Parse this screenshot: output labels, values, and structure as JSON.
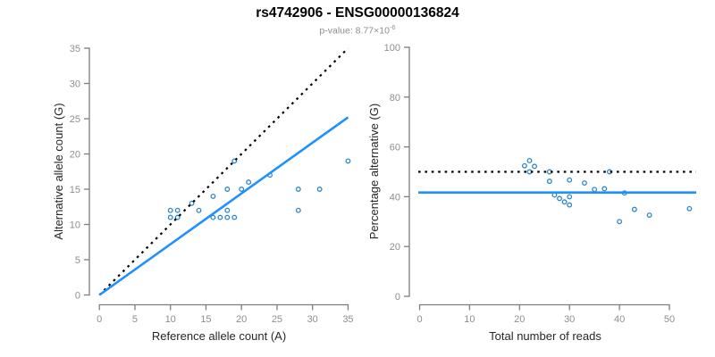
{
  "header": {
    "title": "rs4742906 - ENSG00000136824",
    "subtitle_prefix": "p-value: 8.77×10",
    "subtitle_exponent": "-6"
  },
  "colors": {
    "line_blue": "#1E90FF",
    "point_blue": "#2E86C8",
    "dashed_black": "#000000",
    "axis_gray": "#7d7d7d",
    "tick_label_gray": "#8e8e8e",
    "axis_title_color": "#262626"
  },
  "chart_data": [
    {
      "type": "scatter",
      "panel": "left",
      "xlabel": "Reference allele count (A)",
      "ylabel": "Alternative allele count (G)",
      "xlim": [
        0,
        35
      ],
      "ylim": [
        0,
        35
      ],
      "xticks": [
        0,
        5,
        10,
        15,
        20,
        25,
        30,
        35
      ],
      "yticks": [
        0,
        5,
        10,
        15,
        20,
        25,
        30,
        35
      ],
      "grid": false,
      "points": [
        [
          10,
          12
        ],
        [
          11,
          12
        ],
        [
          10,
          11
        ],
        [
          11,
          11
        ],
        [
          13,
          13
        ],
        [
          14,
          12
        ],
        [
          16,
          14
        ],
        [
          16,
          11
        ],
        [
          17,
          11
        ],
        [
          18,
          11
        ],
        [
          19,
          11
        ],
        [
          18,
          12
        ],
        [
          18,
          15
        ],
        [
          20,
          15
        ],
        [
          19,
          19
        ],
        [
          21,
          16
        ],
        [
          24,
          17
        ],
        [
          28,
          15
        ],
        [
          31,
          15
        ],
        [
          28,
          12
        ],
        [
          35,
          19
        ]
      ],
      "lines": [
        {
          "name": "identity-line",
          "style": "dotted",
          "color": "black",
          "x": [
            0,
            35
          ],
          "y": [
            0,
            35
          ]
        },
        {
          "name": "fit-line",
          "style": "solid",
          "color": "blue",
          "x": [
            0,
            35
          ],
          "y": [
            0,
            25.2
          ]
        }
      ]
    },
    {
      "type": "scatter",
      "panel": "right",
      "xlabel": "Total number of reads",
      "ylabel": "Percentage alternative (G)",
      "xlim": [
        0,
        56
      ],
      "ylim": [
        0,
        100
      ],
      "xticks": [
        0,
        10,
        20,
        30,
        40,
        50
      ],
      "yticks": [
        0,
        20,
        40,
        60,
        80,
        100
      ],
      "grid": false,
      "points": [
        [
          22,
          54.5
        ],
        [
          23,
          52.2
        ],
        [
          21,
          52.4
        ],
        [
          22,
          50.0
        ],
        [
          26,
          50.0
        ],
        [
          26,
          46.2
        ],
        [
          30,
          46.7
        ],
        [
          27,
          40.7
        ],
        [
          28,
          39.3
        ],
        [
          29,
          37.9
        ],
        [
          30,
          36.7
        ],
        [
          30,
          40.0
        ],
        [
          33,
          45.5
        ],
        [
          35,
          42.9
        ],
        [
          38,
          50.0
        ],
        [
          37,
          43.2
        ],
        [
          41,
          41.5
        ],
        [
          43,
          34.9
        ],
        [
          46,
          32.6
        ],
        [
          40,
          30.0
        ],
        [
          54,
          35.2
        ]
      ],
      "lines": [
        {
          "name": "null-line-50pct",
          "style": "dotted",
          "color": "black",
          "y_const": 50
        },
        {
          "name": "mean-alt-line",
          "style": "solid",
          "color": "blue",
          "y_const": 41.7
        }
      ]
    }
  ]
}
